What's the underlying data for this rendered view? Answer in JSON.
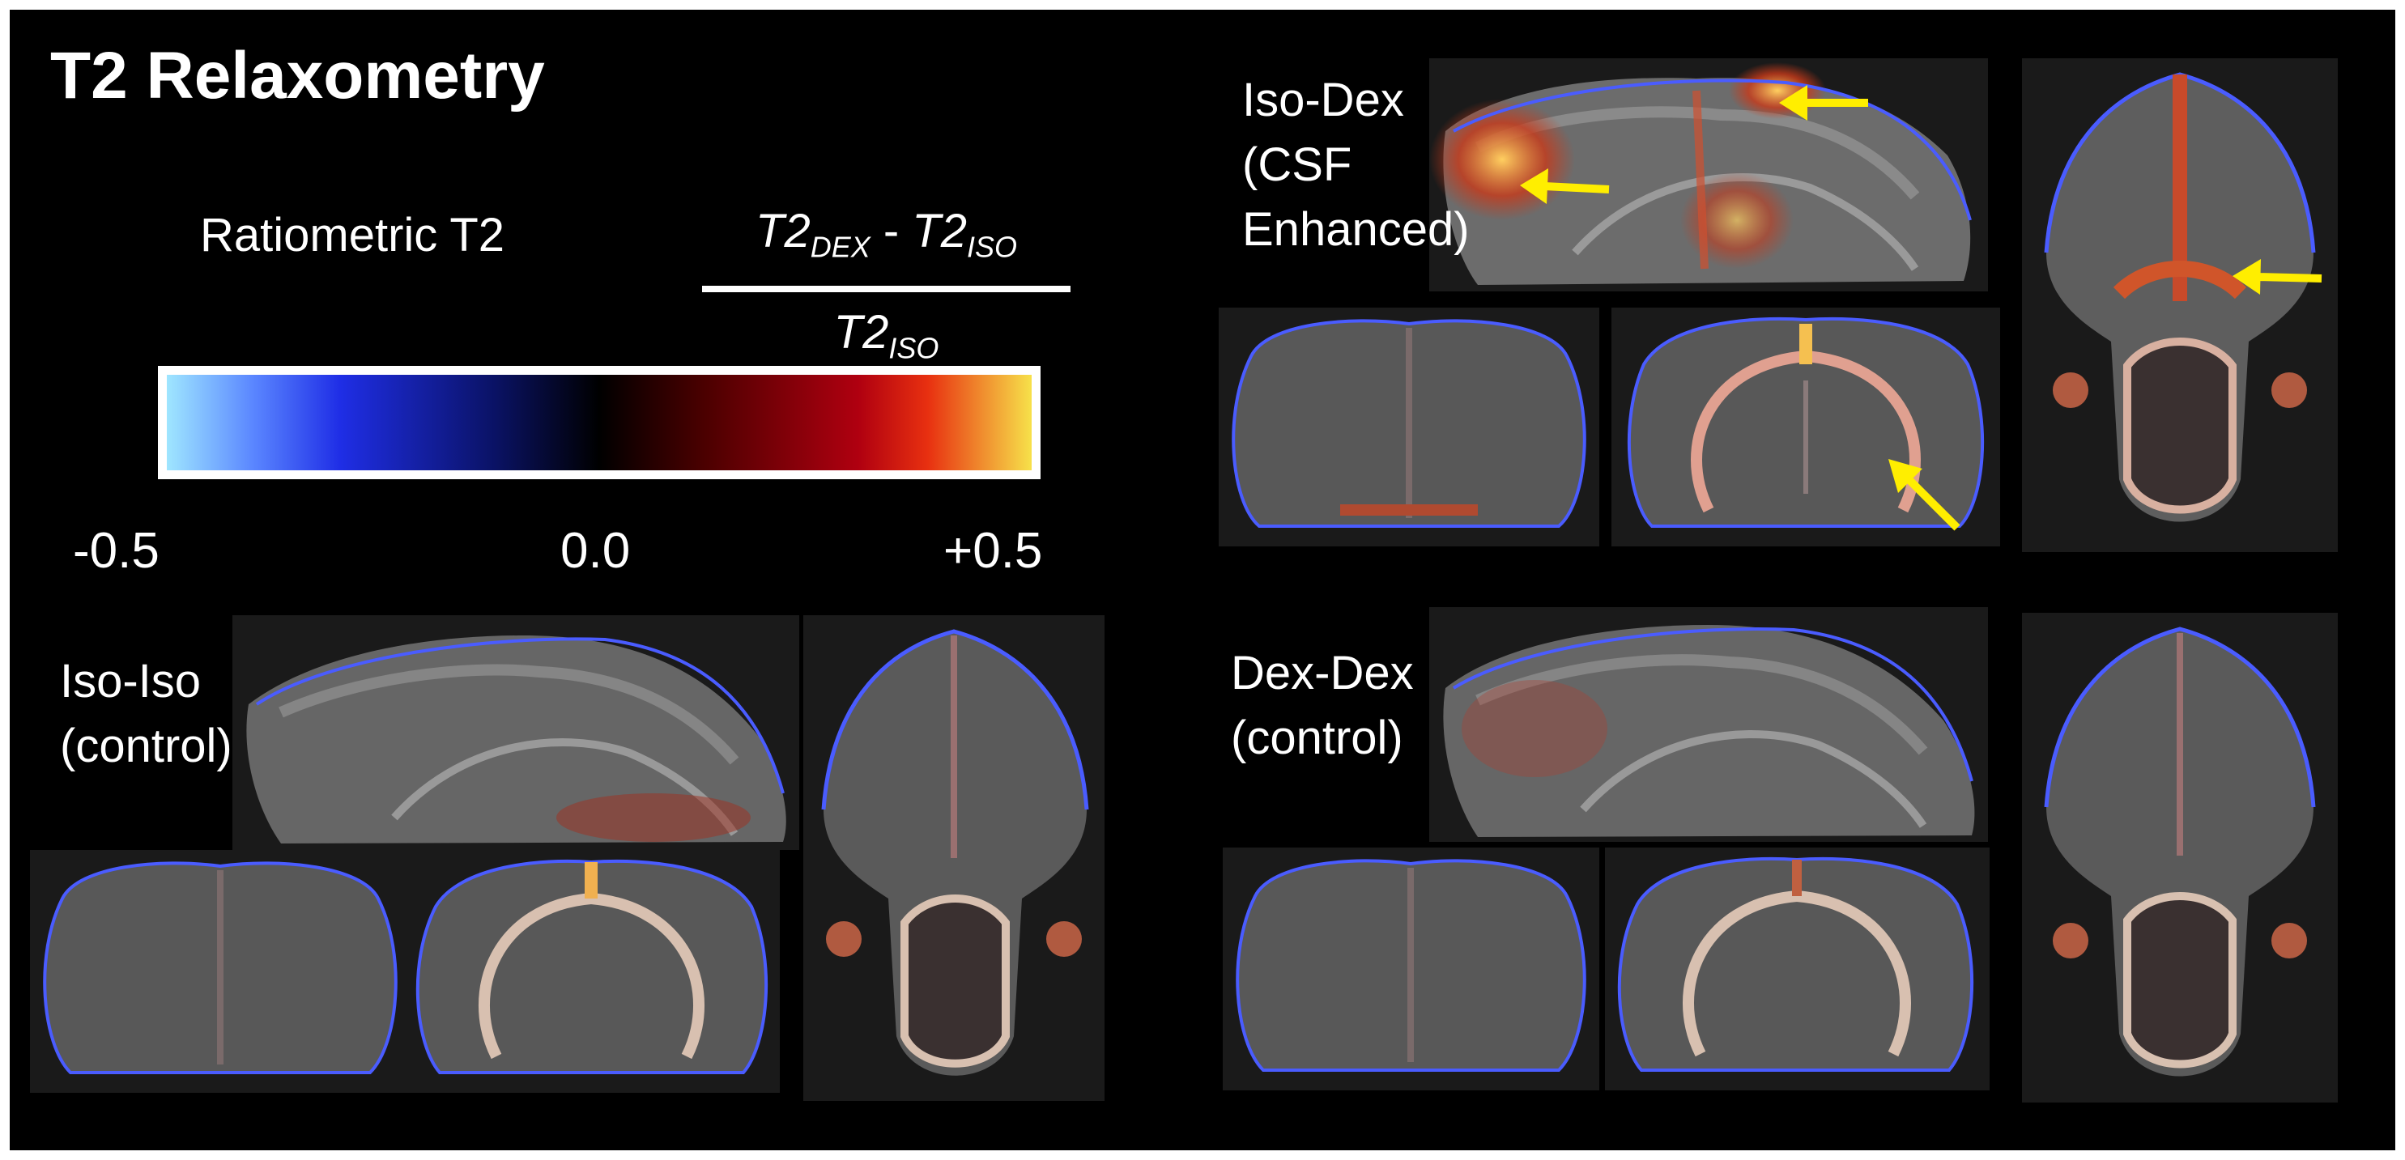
{
  "figure": {
    "title": "T2 Relaxometry",
    "colorbar": {
      "label": "Ratiometric T2",
      "formula": {
        "numerator_a": "T2",
        "numerator_a_sub": "DEX",
        "operator": " - ",
        "numerator_b": "T2",
        "numerator_b_sub": "ISO",
        "denominator": "T2",
        "denominator_sub": "ISO"
      },
      "tick_min": "-0.5",
      "tick_mid": "0.0",
      "tick_max": "+0.5",
      "colors": [
        "#9fe6ff",
        "#1f2ee6",
        "#000000",
        "#b00010",
        "#f7e14a"
      ]
    },
    "groups": [
      {
        "line1": "Iso-Dex",
        "line2": "(CSF",
        "line3": "Enhanced)"
      },
      {
        "line1": "Iso-Iso",
        "line2": "(control)"
      },
      {
        "line1": "Dex-Dex",
        "line2": "(control)"
      }
    ],
    "arrow_color": "#ffee00",
    "icons": [
      "annotation-arrow-icon"
    ]
  }
}
